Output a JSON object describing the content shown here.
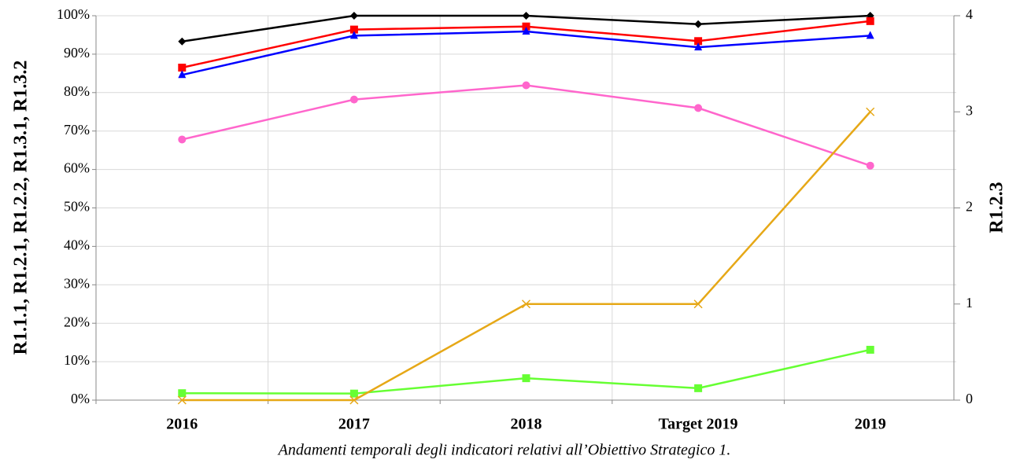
{
  "chart_data": {
    "type": "line",
    "caption": "Andamenti temporali degli indicatori relativi all’Obiettivo Strategico 1.",
    "ylabel": "R1.1.1, R1.2.1, R1.2.2, R1.3.1, R1.3.2",
    "y2label": "R1.2.3",
    "categories": [
      "2016",
      "2017",
      "2018",
      "Target 2019",
      "2019"
    ],
    "ylim": [
      0,
      100
    ],
    "yticks": [
      {
        "value": 0,
        "label": "0%"
      },
      {
        "value": 10,
        "label": "10%"
      },
      {
        "value": 20,
        "label": "20%"
      },
      {
        "value": 30,
        "label": "30%"
      },
      {
        "value": 40,
        "label": "40%"
      },
      {
        "value": 50,
        "label": "50%"
      },
      {
        "value": 60,
        "label": "60%"
      },
      {
        "value": 70,
        "label": "70%"
      },
      {
        "value": 80,
        "label": "80%"
      },
      {
        "value": 90,
        "label": "90%"
      },
      {
        "value": 100,
        "label": "100%"
      }
    ],
    "y2lim": [
      0,
      4
    ],
    "y2ticks": [
      0,
      1,
      2,
      3,
      4
    ],
    "grid": true,
    "series": [
      {
        "color": "#000000",
        "marker": "diamond",
        "values": [
          93.3,
          100,
          100,
          97.8,
          100
        ]
      },
      {
        "color": "#ff0000",
        "marker": "square",
        "values": [
          86.5,
          96.4,
          97.2,
          93.4,
          98.6
        ]
      },
      {
        "color": "#0000ff",
        "marker": "triangle",
        "values": [
          84.6,
          94.8,
          95.9,
          91.8,
          94.8
        ]
      },
      {
        "color": "#ff66cc",
        "marker": "circle",
        "values": [
          67.8,
          78.2,
          81.9,
          76.0,
          61.0
        ]
      },
      {
        "color": "#66ff33",
        "marker": "square",
        "values": [
          1.8,
          1.7,
          5.7,
          3.1,
          13.1
        ]
      },
      {
        "color": "#e6a817",
        "marker": "x",
        "axis": "y2",
        "values": [
          0,
          0,
          1,
          1,
          3
        ]
      }
    ]
  }
}
